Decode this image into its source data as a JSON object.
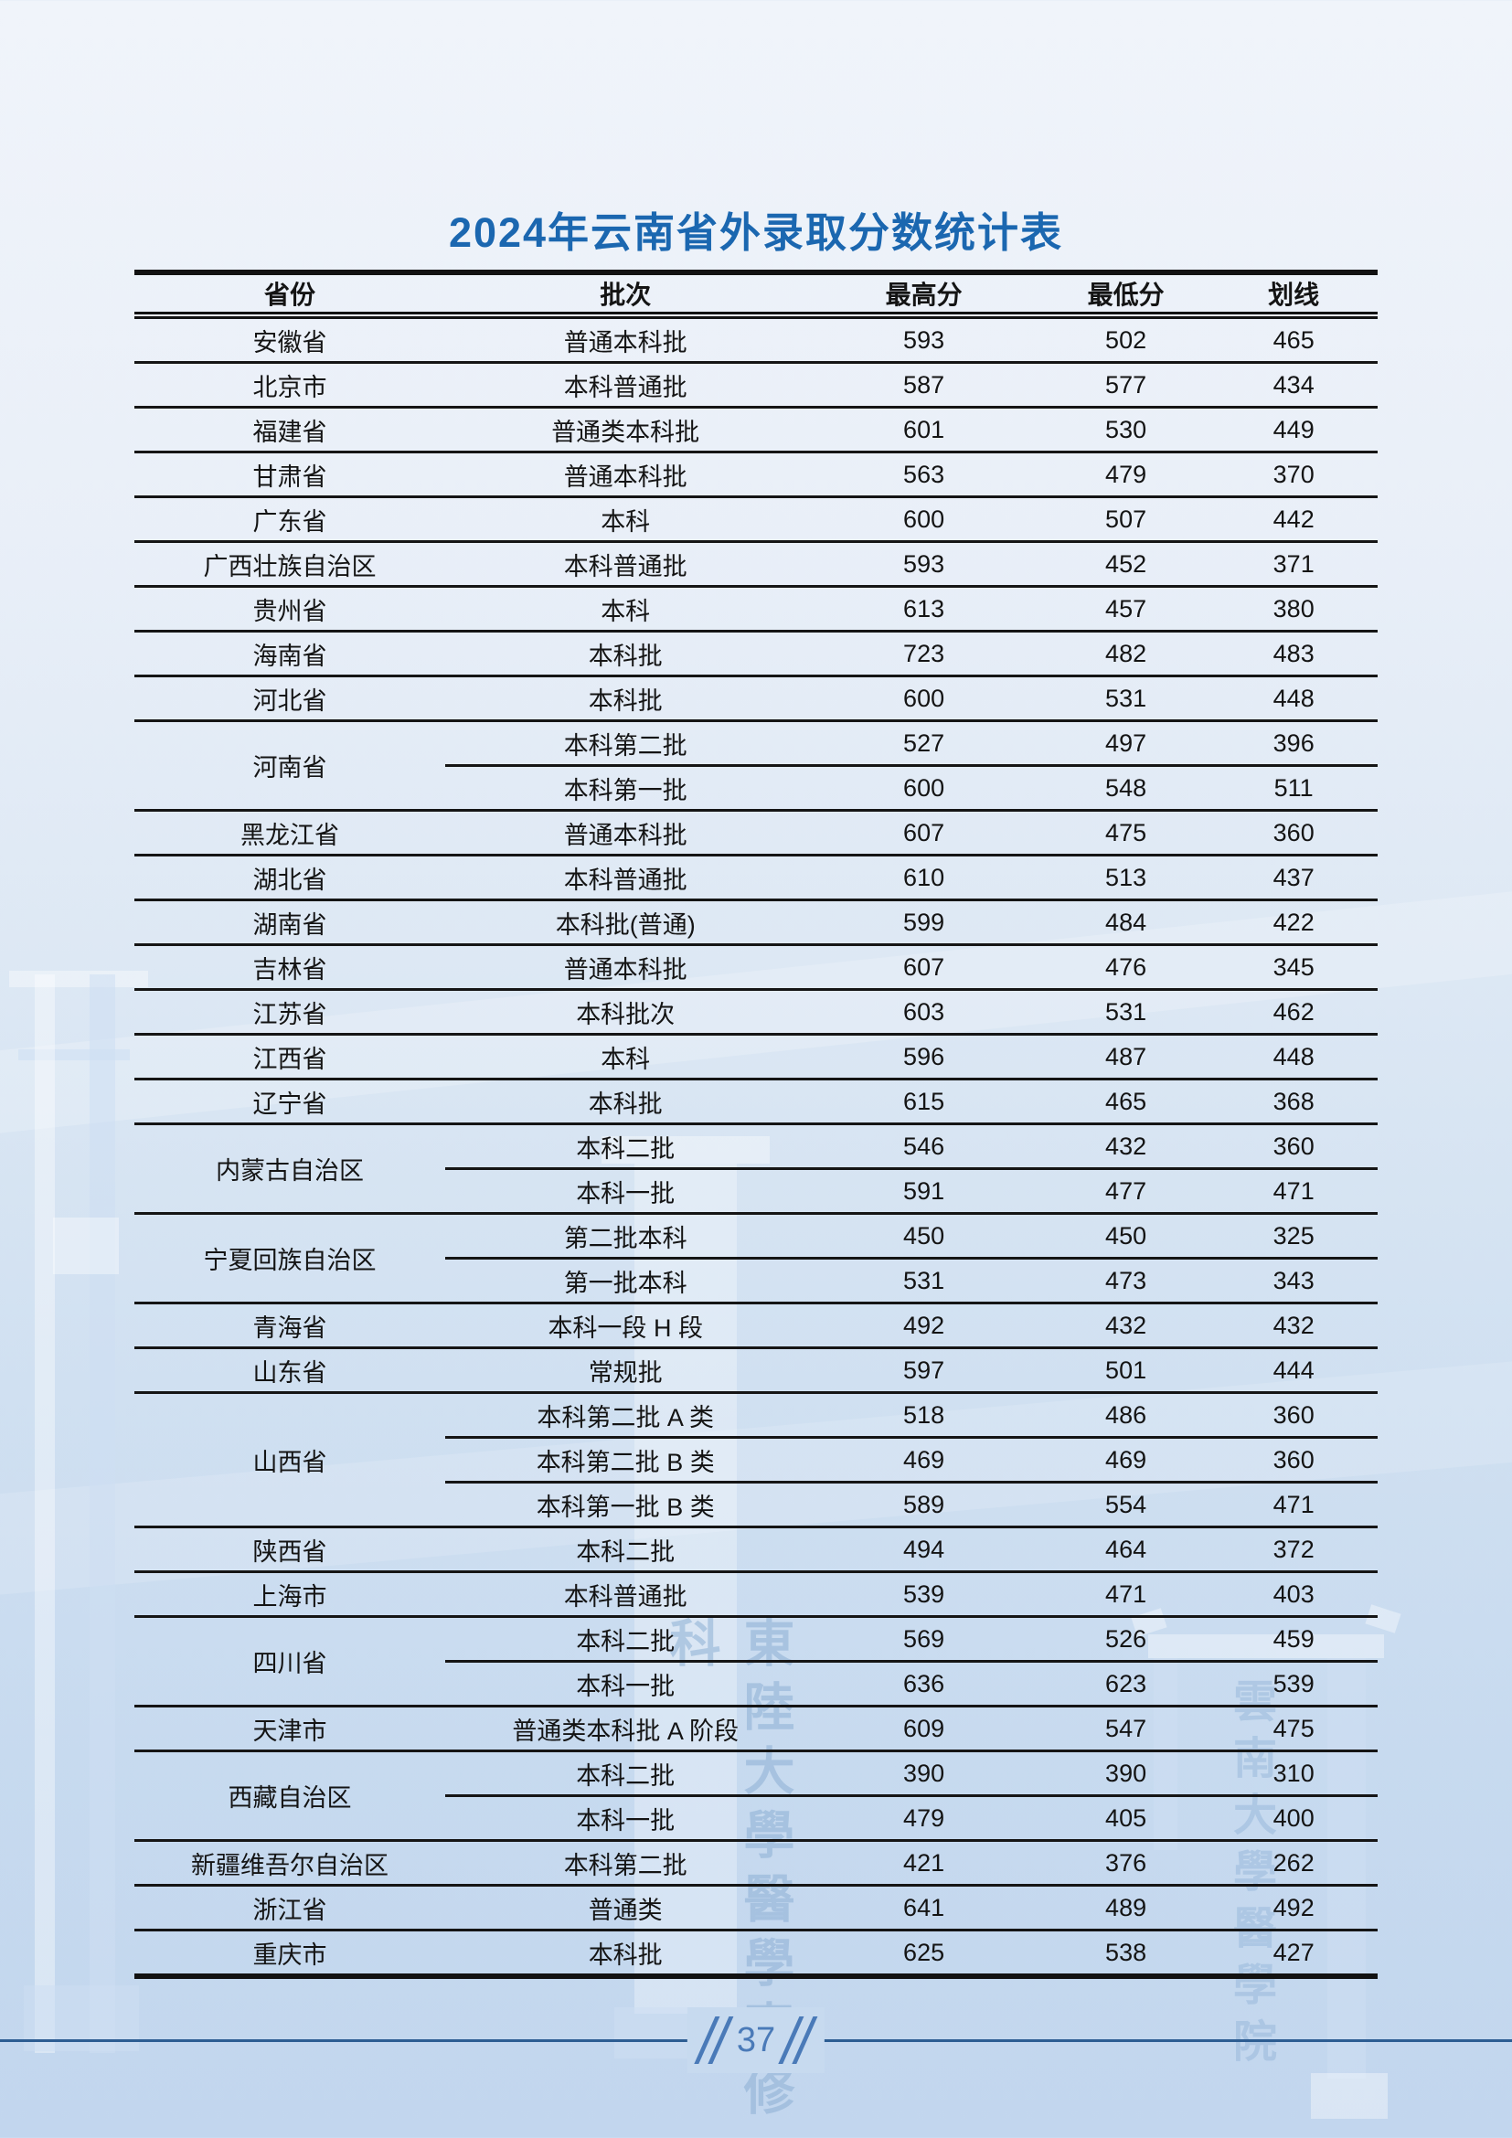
{
  "page": {
    "title": "2024年云南省外录取分数统计表",
    "page_number": "37"
  },
  "table": {
    "headers": [
      "省份",
      "批次",
      "最高分",
      "最低分",
      "划线"
    ],
    "groups": [
      {
        "province": "安徽省",
        "rows": [
          {
            "batch": "普通本科批",
            "max": "593",
            "min": "502",
            "line": "465"
          }
        ]
      },
      {
        "province": "北京市",
        "rows": [
          {
            "batch": "本科普通批",
            "max": "587",
            "min": "577",
            "line": "434"
          }
        ]
      },
      {
        "province": "福建省",
        "rows": [
          {
            "batch": "普通类本科批",
            "max": "601",
            "min": "530",
            "line": "449"
          }
        ]
      },
      {
        "province": "甘肃省",
        "rows": [
          {
            "batch": "普通本科批",
            "max": "563",
            "min": "479",
            "line": "370"
          }
        ]
      },
      {
        "province": "广东省",
        "rows": [
          {
            "batch": "本科",
            "max": "600",
            "min": "507",
            "line": "442"
          }
        ]
      },
      {
        "province": "广西壮族自治区",
        "rows": [
          {
            "batch": "本科普通批",
            "max": "593",
            "min": "452",
            "line": "371"
          }
        ]
      },
      {
        "province": "贵州省",
        "rows": [
          {
            "batch": "本科",
            "max": "613",
            "min": "457",
            "line": "380"
          }
        ]
      },
      {
        "province": "海南省",
        "rows": [
          {
            "batch": "本科批",
            "max": "723",
            "min": "482",
            "line": "483"
          }
        ]
      },
      {
        "province": "河北省",
        "rows": [
          {
            "batch": "本科批",
            "max": "600",
            "min": "531",
            "line": "448"
          }
        ]
      },
      {
        "province": "河南省",
        "rows": [
          {
            "batch": "本科第二批",
            "max": "527",
            "min": "497",
            "line": "396"
          },
          {
            "batch": "本科第一批",
            "max": "600",
            "min": "548",
            "line": "511"
          }
        ]
      },
      {
        "province": "黑龙江省",
        "rows": [
          {
            "batch": "普通本科批",
            "max": "607",
            "min": "475",
            "line": "360"
          }
        ]
      },
      {
        "province": "湖北省",
        "rows": [
          {
            "batch": "本科普通批",
            "max": "610",
            "min": "513",
            "line": "437"
          }
        ]
      },
      {
        "province": "湖南省",
        "rows": [
          {
            "batch": "本科批(普通)",
            "max": "599",
            "min": "484",
            "line": "422"
          }
        ]
      },
      {
        "province": "吉林省",
        "rows": [
          {
            "batch": "普通本科批",
            "max": "607",
            "min": "476",
            "line": "345"
          }
        ]
      },
      {
        "province": "江苏省",
        "rows": [
          {
            "batch": "本科批次",
            "max": "603",
            "min": "531",
            "line": "462"
          }
        ]
      },
      {
        "province": "江西省",
        "rows": [
          {
            "batch": "本科",
            "max": "596",
            "min": "487",
            "line": "448"
          }
        ]
      },
      {
        "province": "辽宁省",
        "rows": [
          {
            "batch": "本科批",
            "max": "615",
            "min": "465",
            "line": "368"
          }
        ]
      },
      {
        "province": "内蒙古自治区",
        "rows": [
          {
            "batch": "本科二批",
            "max": "546",
            "min": "432",
            "line": "360"
          },
          {
            "batch": "本科一批",
            "max": "591",
            "min": "477",
            "line": "471"
          }
        ]
      },
      {
        "province": "宁夏回族自治区",
        "rows": [
          {
            "batch": "第二批本科",
            "max": "450",
            "min": "450",
            "line": "325"
          },
          {
            "batch": "第一批本科",
            "max": "531",
            "min": "473",
            "line": "343"
          }
        ]
      },
      {
        "province": "青海省",
        "rows": [
          {
            "batch": "本科一段 H 段",
            "max": "492",
            "min": "432",
            "line": "432"
          }
        ]
      },
      {
        "province": "山东省",
        "rows": [
          {
            "batch": "常规批",
            "max": "597",
            "min": "501",
            "line": "444"
          }
        ]
      },
      {
        "province": "山西省",
        "rows": [
          {
            "batch": "本科第二批 A 类",
            "max": "518",
            "min": "486",
            "line": "360"
          },
          {
            "batch": "本科第二批 B 类",
            "max": "469",
            "min": "469",
            "line": "360"
          },
          {
            "batch": "本科第一批 B 类",
            "max": "589",
            "min": "554",
            "line": "471"
          }
        ]
      },
      {
        "province": "陕西省",
        "rows": [
          {
            "batch": "本科二批",
            "max": "494",
            "min": "464",
            "line": "372"
          }
        ]
      },
      {
        "province": "上海市",
        "rows": [
          {
            "batch": "本科普通批",
            "max": "539",
            "min": "471",
            "line": "403"
          }
        ]
      },
      {
        "province": "四川省",
        "rows": [
          {
            "batch": "本科二批",
            "max": "569",
            "min": "526",
            "line": "459"
          },
          {
            "batch": "本科一批",
            "max": "636",
            "min": "623",
            "line": "539"
          }
        ]
      },
      {
        "province": "天津市",
        "rows": [
          {
            "batch": "普通类本科批 A 阶段",
            "max": "609",
            "min": "547",
            "line": "475"
          }
        ]
      },
      {
        "province": "西藏自治区",
        "rows": [
          {
            "batch": "本科二批",
            "max": "390",
            "min": "390",
            "line": "310"
          },
          {
            "batch": "本科一批",
            "max": "479",
            "min": "405",
            "line": "400"
          }
        ]
      },
      {
        "province": "新疆维吾尔自治区",
        "rows": [
          {
            "batch": "本科第二批",
            "max": "421",
            "min": "376",
            "line": "262"
          }
        ]
      },
      {
        "province": "浙江省",
        "rows": [
          {
            "batch": "普通类",
            "max": "641",
            "min": "489",
            "line": "492"
          }
        ]
      },
      {
        "province": "重庆市",
        "rows": [
          {
            "batch": "本科批",
            "max": "625",
            "min": "538",
            "line": "427"
          }
        ]
      }
    ]
  },
  "watermarks": {
    "center_text": "東陸大學醫學專修科",
    "right_text": "雲南大學醫學院"
  },
  "colors": {
    "title_blue": "#1b67b0",
    "table_border": "#121212",
    "footer_line_blue": "#2d5d92",
    "page_number_blue": "#4a7ab8",
    "background_top": "#f0f4fa",
    "background_bottom": "#c2d6ee"
  }
}
